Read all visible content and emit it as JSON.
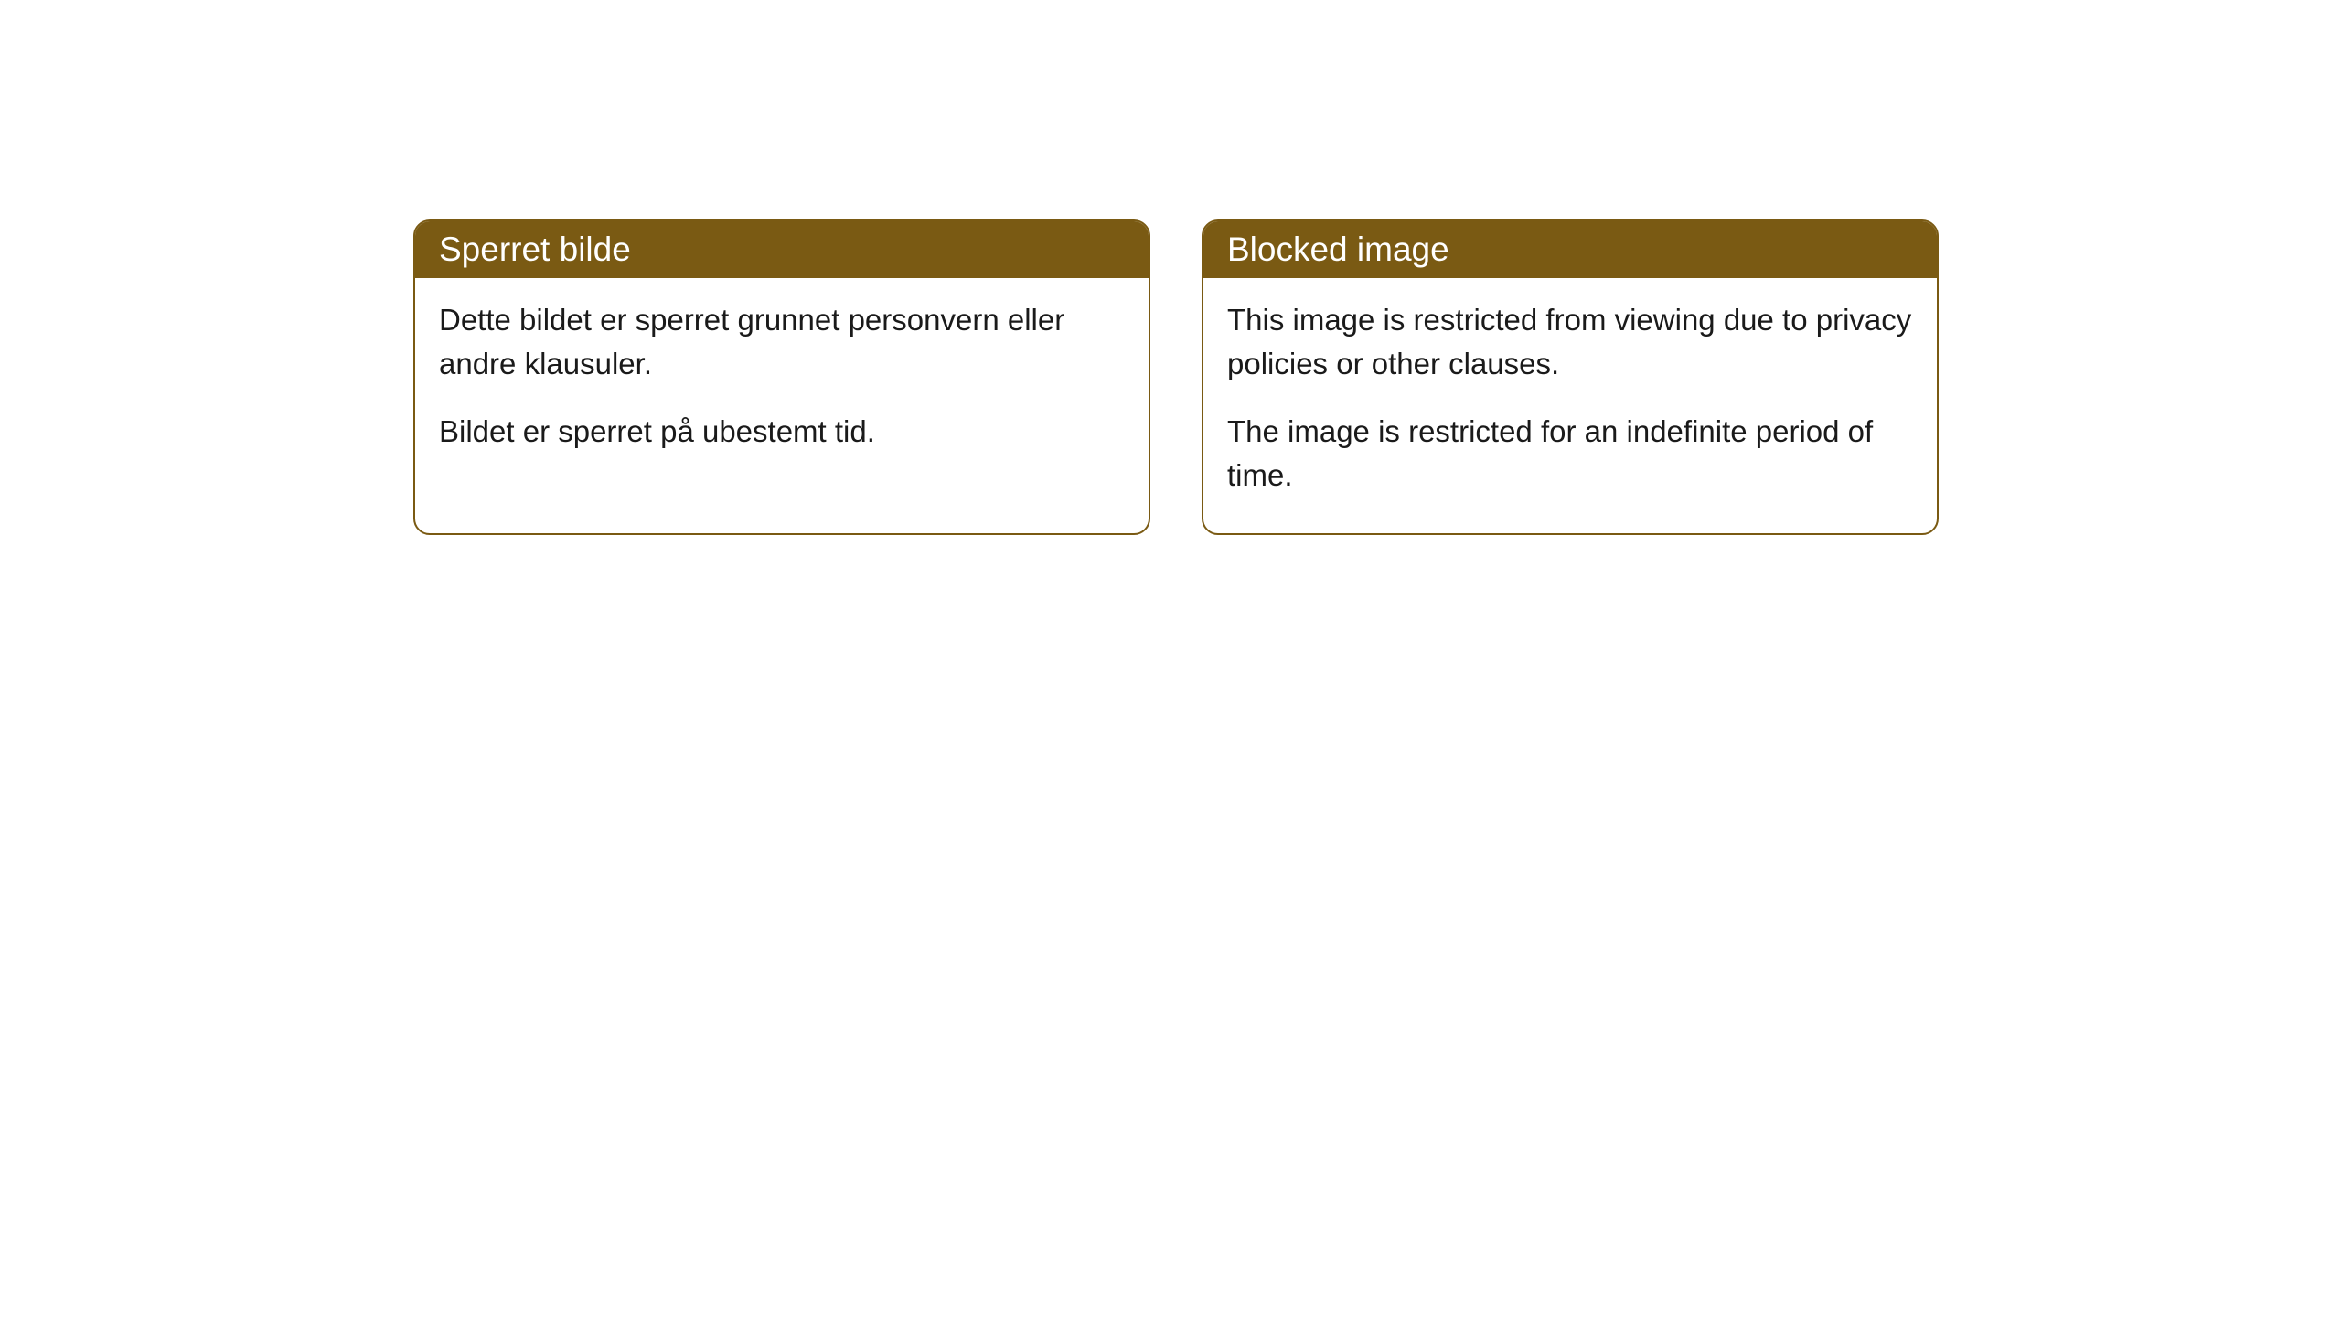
{
  "cards": [
    {
      "title": "Sperret bilde",
      "paragraph1": "Dette bildet er sperret grunnet personvern eller andre klausuler.",
      "paragraph2": "Bildet er sperret på ubestemt tid."
    },
    {
      "title": "Blocked image",
      "paragraph1": "This image is restricted from viewing due to privacy policies or other clauses.",
      "paragraph2": "The image is restricted for an indefinite period of time."
    }
  ],
  "style": {
    "header_bg": "#7a5a13",
    "header_text_color": "#ffffff",
    "border_color": "#7a5a13",
    "body_text_color": "#1a1a1a",
    "card_bg": "#ffffff",
    "border_radius": 18,
    "header_fontsize": 37,
    "body_fontsize": 33
  }
}
